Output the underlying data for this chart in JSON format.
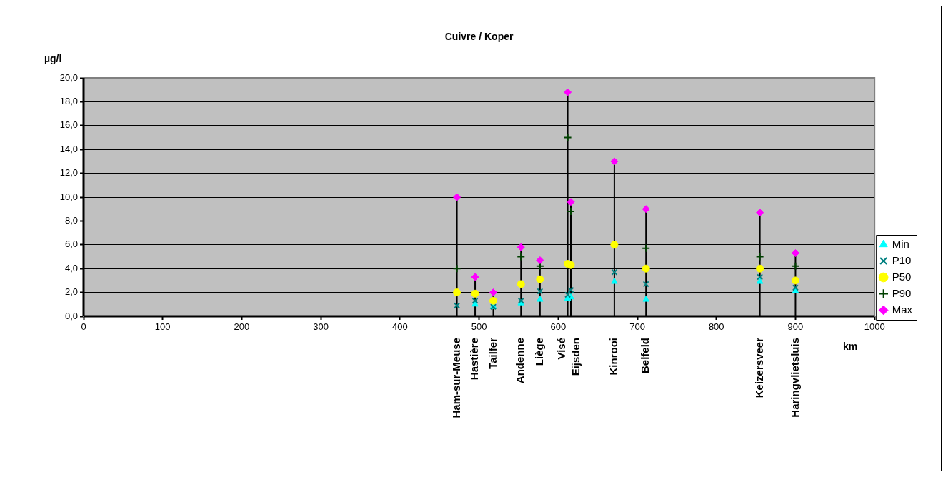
{
  "chart_data": {
    "type": "scatter",
    "title": "Cuivre / Koper",
    "ylabel": "µg/l",
    "xlabel": "km",
    "x": [
      472,
      495,
      518,
      553,
      577,
      612,
      616,
      671,
      711,
      855,
      900
    ],
    "series": [
      {
        "name": "Min",
        "color": "#00ffff",
        "marker": "triangle",
        "values": [
          null,
          1.0,
          0.8,
          1.1,
          1.4,
          1.5,
          1.6,
          2.9,
          1.4,
          2.9,
          2.1
        ]
      },
      {
        "name": "P10",
        "color": "#008080",
        "marker": "cross",
        "values": [
          0.9,
          1.3,
          0.8,
          1.3,
          2.1,
          1.8,
          2.2,
          3.7,
          2.7,
          3.3,
          2.4
        ]
      },
      {
        "name": "P50",
        "color": "#ffff00",
        "marker": "circle",
        "values": [
          2.0,
          1.9,
          1.3,
          2.7,
          3.1,
          4.4,
          4.3,
          6.0,
          4.0,
          4.0,
          3.0
        ]
      },
      {
        "name": "P90",
        "color": "#004000",
        "marker": "plus",
        "values": [
          4.0,
          null,
          null,
          5.0,
          4.2,
          15.0,
          8.8,
          null,
          5.7,
          5.0,
          4.2
        ]
      },
      {
        "name": "Max",
        "type": "lollipop",
        "color": "#ff00ff",
        "marker": "diamond",
        "values": [
          10.0,
          3.3,
          2.0,
          5.8,
          4.7,
          18.8,
          9.6,
          13.0,
          9.0,
          8.7,
          5.3
        ]
      }
    ],
    "xticks": [
      0,
      100,
      200,
      300,
      400,
      500,
      600,
      700,
      800,
      900,
      1000
    ],
    "annotations": [
      "Ham-sur-Meuse",
      "Hastière",
      "Tailfer",
      "Andenne",
      "Liège",
      "Visé",
      "Eijsden",
      "Kinrooi",
      "Belfeld",
      "Keizersveer",
      "Haringvlietsluis"
    ],
    "xlim": [
      0,
      1000
    ],
    "ylim": [
      0,
      20
    ],
    "yticks": [
      {
        "value": 0,
        "label": "0,0"
      },
      {
        "value": 2,
        "label": "2,0"
      },
      {
        "value": 4,
        "label": "4,0"
      },
      {
        "value": 6,
        "label": "6,0"
      },
      {
        "value": 8,
        "label": "8,0"
      },
      {
        "value": 10,
        "label": "10,0"
      },
      {
        "value": 12,
        "label": "12,0"
      },
      {
        "value": 14,
        "label": "14,0"
      },
      {
        "value": 16,
        "label": "16,0"
      },
      {
        "value": 18,
        "label": "18,0"
      },
      {
        "value": 20,
        "label": "20,0"
      }
    ],
    "grid": "y",
    "legend": "right"
  }
}
